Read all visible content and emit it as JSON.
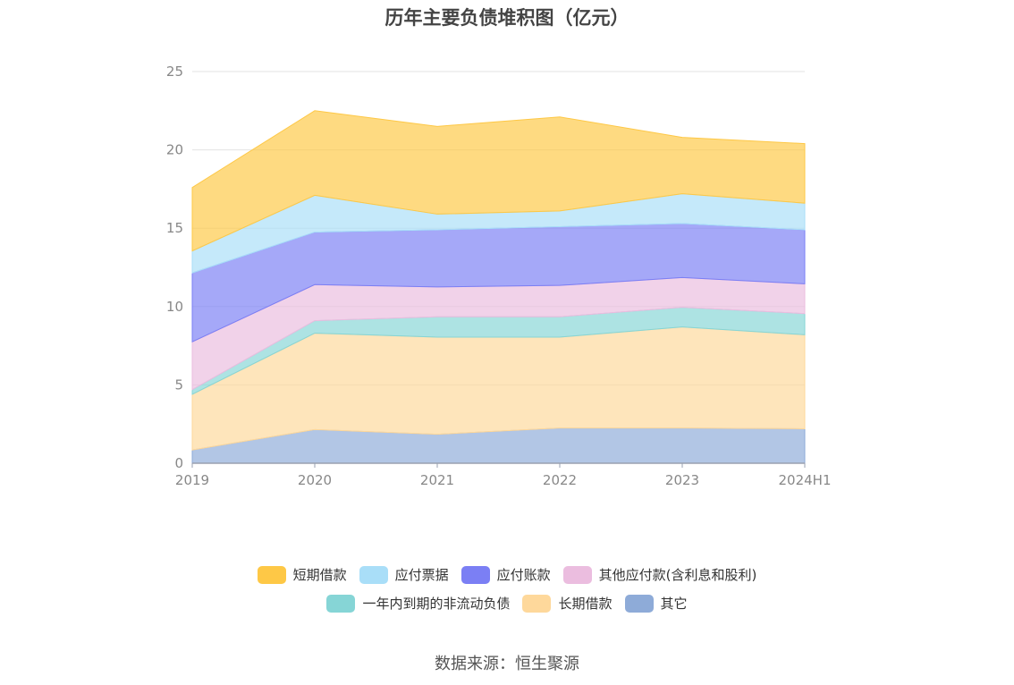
{
  "chart_data": {
    "type": "area",
    "title": "历年主要负债堆积图（亿元）",
    "stacked": true,
    "categories": [
      "2019",
      "2020",
      "2021",
      "2022",
      "2023",
      "2024H1"
    ],
    "ylim": [
      0,
      25
    ],
    "yticks": [
      0,
      5,
      10,
      15,
      20,
      25
    ],
    "grid": true,
    "legend_position": "bottom",
    "series": [
      {
        "name": "其它",
        "color": "#8eabd8",
        "values": [
          0.85,
          2.15,
          1.85,
          2.25,
          2.25,
          2.2
        ]
      },
      {
        "name": "长期借款",
        "color": "#fed89b",
        "values": [
          3.55,
          6.15,
          6.2,
          5.8,
          6.45,
          6.0
        ]
      },
      {
        "name": "一年内到期的非流动负债",
        "color": "#86d5d6",
        "values": [
          0.3,
          0.8,
          1.3,
          1.3,
          1.25,
          1.35
        ]
      },
      {
        "name": "其他应付款(含利息和股利)",
        "color": "#ebbddf",
        "values": [
          3.05,
          2.3,
          1.9,
          2.0,
          1.9,
          1.9
        ]
      },
      {
        "name": "应付账款",
        "color": "#7b7ff4",
        "values": [
          4.4,
          3.35,
          3.65,
          3.75,
          3.45,
          3.45
        ]
      },
      {
        "name": "应付票据",
        "color": "#a9def8",
        "values": [
          1.4,
          2.35,
          1.0,
          1.0,
          1.9,
          1.7
        ]
      },
      {
        "name": "短期借款",
        "color": "#fec846",
        "values": [
          4.05,
          5.4,
          5.6,
          6.0,
          3.6,
          3.8
        ]
      }
    ]
  },
  "source": "数据来源：恒生聚源"
}
